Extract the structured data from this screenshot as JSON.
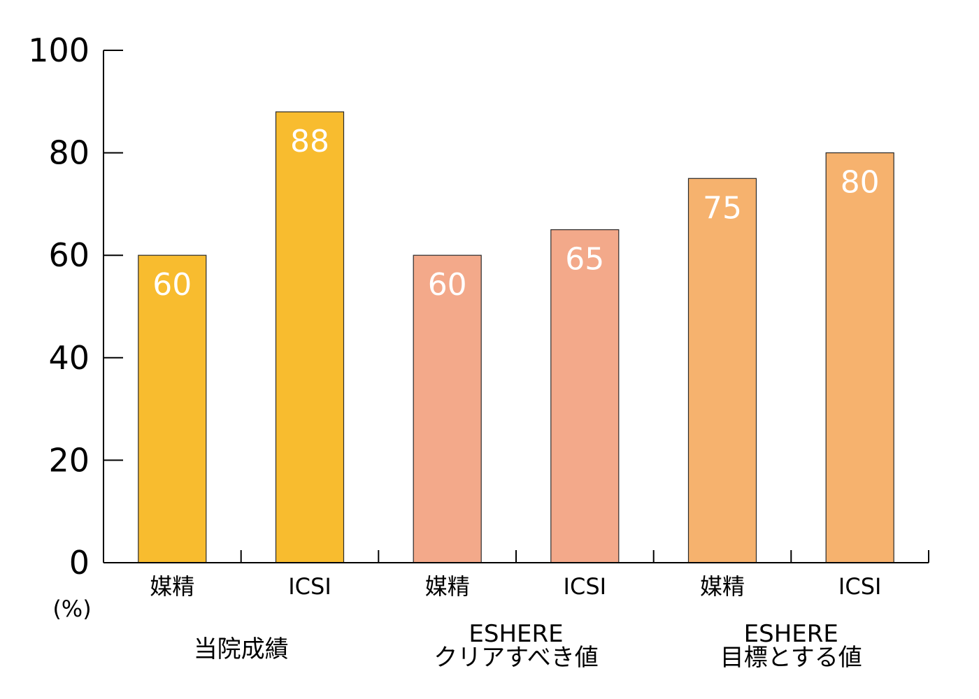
{
  "chart_data": {
    "type": "bar",
    "categories": [
      "媒精",
      "ICSI",
      "媒精",
      "ICSI",
      "媒精",
      "ICSI"
    ],
    "values": [
      60,
      88,
      60,
      65,
      75,
      80
    ],
    "bar_colors": [
      "#f8bc2f",
      "#f8bc2f",
      "#f3a98a",
      "#f3a98a",
      "#f6b26e",
      "#f6b26e"
    ],
    "groups": [
      {
        "lines": [
          "当院成績"
        ],
        "categories": [
          0,
          1
        ]
      },
      {
        "lines": [
          "ESHERE",
          "クリアすべき値"
        ],
        "categories": [
          2,
          3
        ]
      },
      {
        "lines": [
          "ESHERE",
          "目標とする値"
        ],
        "categories": [
          4,
          5
        ]
      }
    ],
    "y_ticks": [
      0,
      20,
      40,
      60,
      80,
      100
    ],
    "ylim": [
      0,
      100
    ],
    "y_unit": "(%)",
    "grid": false,
    "data_labels": true
  }
}
